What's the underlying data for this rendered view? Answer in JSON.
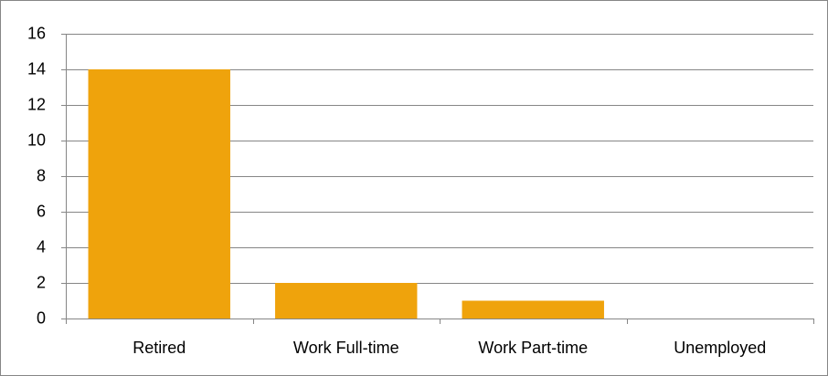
{
  "chart_data": {
    "type": "bar",
    "categories": [
      "Retired",
      "Work Full-time",
      "Work Part-time",
      "Unemployed"
    ],
    "values": [
      14,
      2,
      1,
      0
    ],
    "color": "#efa30c",
    "ylim": [
      0,
      16
    ],
    "yticks": [
      0,
      2,
      4,
      6,
      8,
      10,
      12,
      14,
      16
    ],
    "grid": true
  }
}
